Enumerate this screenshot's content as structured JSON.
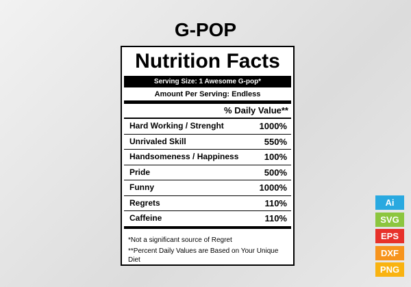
{
  "title": "G-POP",
  "label": {
    "heading": "Nutrition Facts",
    "serving_size": "Serving Size: 1 Awesome G-pop*",
    "amount_per_serving": "Amount Per Serving: Endless",
    "daily_value_header": "% Daily Value**",
    "rows": [
      [
        "Hard Working / Strenght",
        "1000%"
      ],
      [
        "Unrivaled Skill",
        "550%"
      ],
      [
        "Handsomeness / Happiness",
        "100%"
      ],
      [
        "Pride",
        "500%"
      ],
      [
        "Funny",
        "1000%"
      ],
      [
        "Regrets",
        "110%"
      ],
      [
        "Caffeine",
        "110%"
      ]
    ],
    "footnotes": [
      "*Not a significant source of Regret",
      "**Percent Daily Values are Based on Your Unique Diet"
    ]
  },
  "badges": [
    "Ai",
    "SVG",
    "EPS",
    "DXF",
    "PNG"
  ]
}
